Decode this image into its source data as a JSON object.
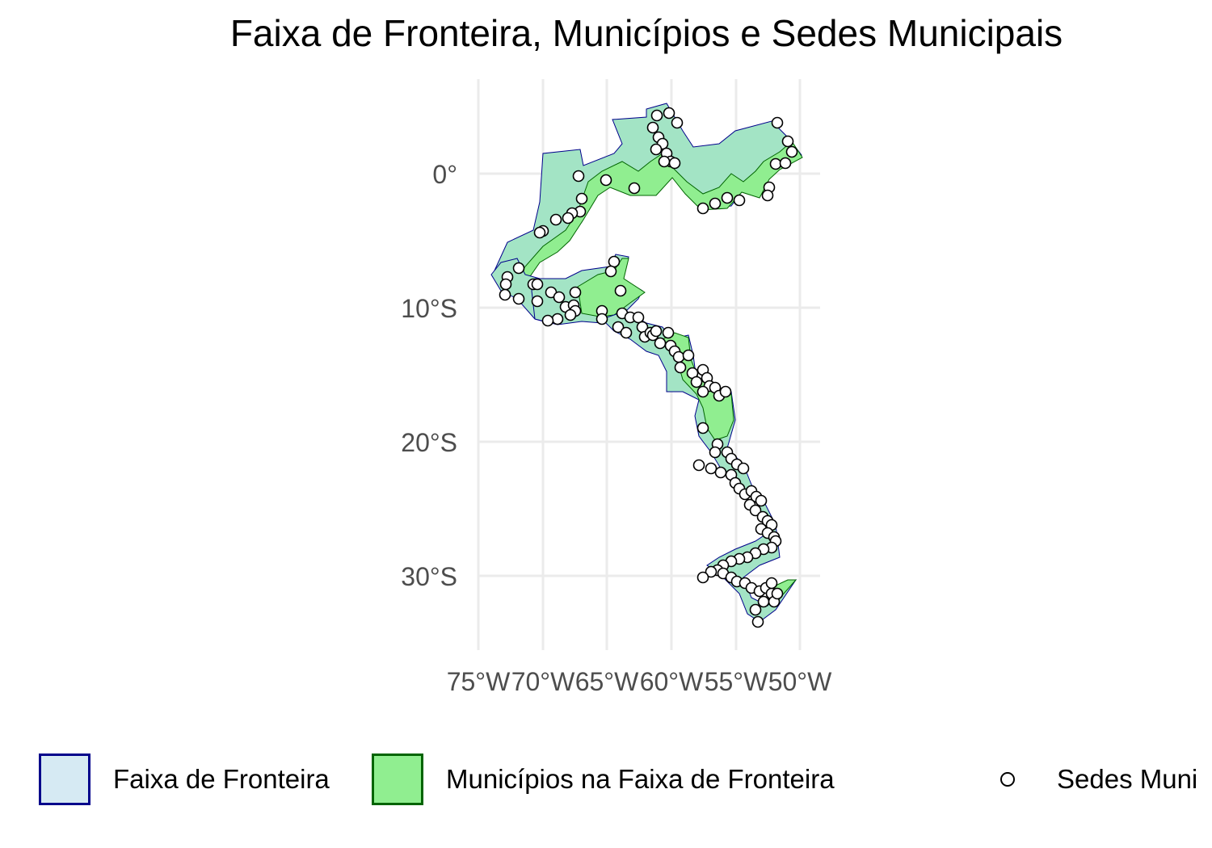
{
  "title": "Faixa de Fronteira, Municípios e Sedes Municipais",
  "axes": {
    "y_ticks": [
      "0°",
      "10°S",
      "20°S",
      "30°S"
    ],
    "x_ticks": [
      "75°W",
      "70°W",
      "65°W",
      "60°W",
      "55°W",
      "50°W"
    ]
  },
  "colors": {
    "faixa_fill": "#d6eaf3",
    "faixa_border": "#00008b",
    "municipios_fill": "#90ee90",
    "municipios_border": "#006400",
    "overlap_fill": "#a3e4c5",
    "point_fill": "#ffffff",
    "point_stroke": "#000000",
    "grid": "#ebebeb"
  },
  "legend": [
    {
      "label": "Faixa de Fronteira",
      "type": "fill-swatch"
    },
    {
      "label": "Municípios na Faixa de Fronteira",
      "type": "fill-swatch"
    },
    {
      "label": "Sedes Muni",
      "type": "point"
    }
  ]
}
